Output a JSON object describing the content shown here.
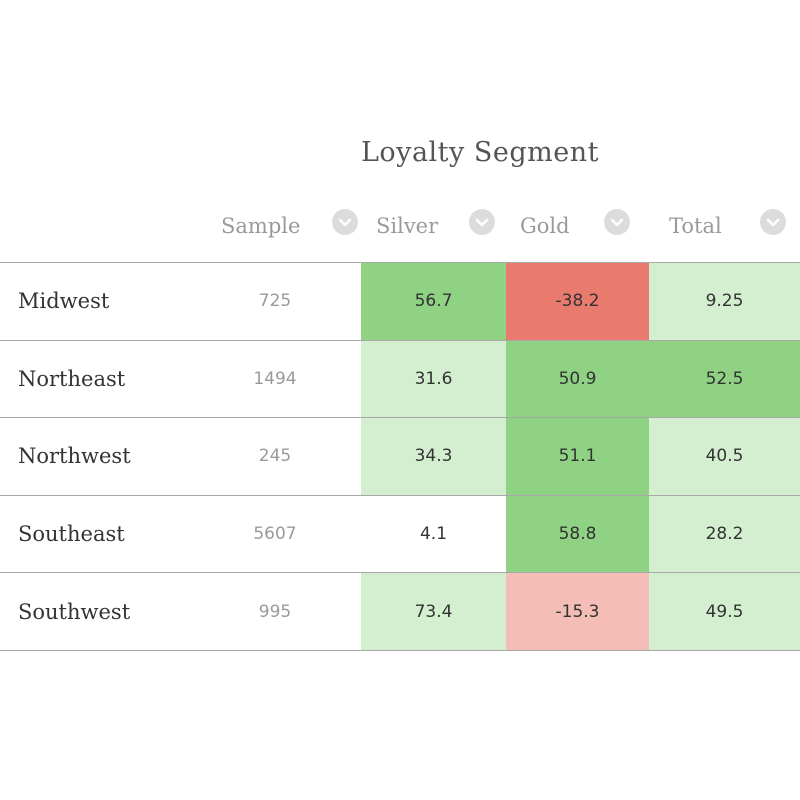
{
  "colors": {
    "strong_green": "#8fd283",
    "light_green": "#d3efcf",
    "strong_red": "#e97b6e",
    "light_red": "#f4bdb6",
    "none": "#ffffff"
  },
  "chart_data": {
    "type": "table",
    "title": "Loyalty Segment",
    "columns": [
      "Sample",
      "Silver",
      "Gold",
      "Total"
    ],
    "rows": [
      {
        "label": "Midwest",
        "sample": 725,
        "silver": 56.7,
        "gold": -38.2,
        "total": 9.25,
        "shades": {
          "silver": "strong_green",
          "gold": "strong_red",
          "total": "light_green"
        }
      },
      {
        "label": "Northeast",
        "sample": 1494,
        "silver": 31.6,
        "gold": 50.9,
        "total": 52.5,
        "shades": {
          "silver": "light_green",
          "gold": "strong_green",
          "total": "strong_green"
        }
      },
      {
        "label": "Northwest",
        "sample": 245,
        "silver": 34.3,
        "gold": 51.1,
        "total": 40.5,
        "shades": {
          "silver": "light_green",
          "gold": "strong_green",
          "total": "light_green"
        }
      },
      {
        "label": "Southeast",
        "sample": 5607,
        "silver": 4.1,
        "gold": 58.8,
        "total": 28.2,
        "shades": {
          "silver": "none",
          "gold": "strong_green",
          "total": "light_green"
        }
      },
      {
        "label": "Southwest",
        "sample": 995,
        "silver": 73.4,
        "gold": -15.3,
        "total": 49.5,
        "shades": {
          "silver": "light_green",
          "gold": "light_red",
          "total": "light_green"
        }
      }
    ]
  },
  "icons": {
    "sort": "chevron-down-icon"
  }
}
